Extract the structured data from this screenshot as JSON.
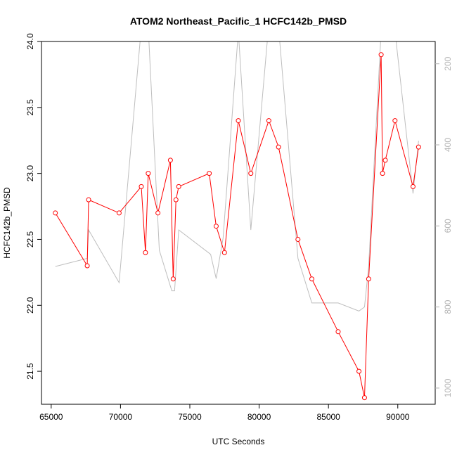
{
  "chart_data": {
    "type": "line",
    "title": "ATOM2 Northeast_Pacific_1 HCFC142b_PMSD",
    "xlabel": "UTC Seconds",
    "ylabel": "HCFC142b_PMSD",
    "xlim": [
      64300,
      92700
    ],
    "ylim": [
      21.25,
      24.0
    ],
    "x_ticks": [
      65000,
      70000,
      75000,
      80000,
      85000,
      90000
    ],
    "y_ticks": [
      21.5,
      22.0,
      22.5,
      23.0,
      23.5,
      24.0
    ],
    "y2_ticks": [
      200,
      400,
      600,
      800,
      1000
    ],
    "y2lim": [
      1040,
      145
    ],
    "grid": false,
    "legend": "none",
    "colors": {
      "primary": "#ff0000",
      "secondary": "#bebebe"
    },
    "series": [
      {
        "axis": "left",
        "style": "line+markers",
        "x": [
          65300,
          67600,
          67700,
          69900,
          71500,
          71800,
          72000,
          72700,
          73600,
          73800,
          74000,
          74200,
          76400,
          76900,
          77500,
          78500,
          79400,
          80700,
          81400,
          82800,
          83800,
          85700,
          87200,
          87600,
          87900,
          88800,
          88900,
          89100,
          89800,
          91100,
          91500
        ],
        "y": [
          22.7,
          22.3,
          22.8,
          22.7,
          22.9,
          22.4,
          23.0,
          22.7,
          23.1,
          22.2,
          22.8,
          22.9,
          23.0,
          22.6,
          22.4,
          23.4,
          23.0,
          23.4,
          23.2,
          22.5,
          22.2,
          21.8,
          21.5,
          21.3,
          22.2,
          23.9,
          23.0,
          23.1,
          23.4,
          22.9,
          23.2
        ]
      },
      {
        "axis": "right",
        "style": "line",
        "x": [
          65300,
          67600,
          67700,
          69900,
          71500,
          72000,
          72800,
          73700,
          73900,
          74200,
          76500,
          76900,
          77400,
          78500,
          79400,
          80700,
          81400,
          82800,
          83800,
          85700,
          87200,
          87600,
          87900,
          88800,
          89100,
          89800,
          91100,
          91500
        ],
        "y": [
          700,
          680,
          610,
          740,
          110,
          110,
          660,
          760,
          760,
          610,
          670,
          730,
          630,
          120,
          610,
          100,
          110,
          680,
          790,
          790,
          810,
          800,
          700,
          120,
          120,
          120,
          520,
          390
        ]
      }
    ]
  }
}
